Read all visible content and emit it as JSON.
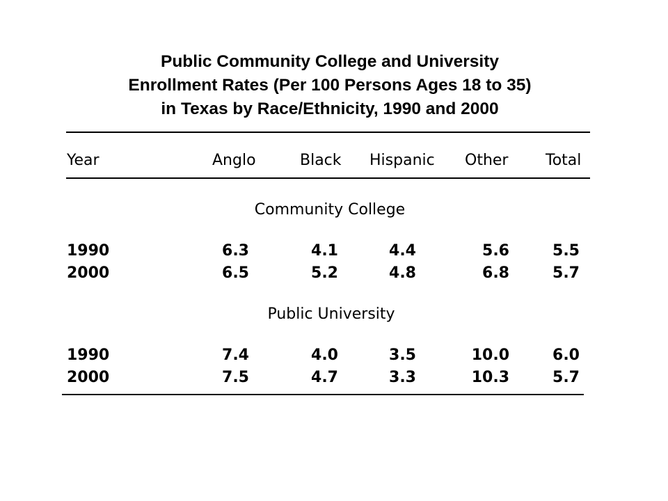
{
  "title": {
    "line1": "Public Community College and University",
    "line2": "Enrollment Rates (Per 100 Persons Ages 18 to 35)",
    "line3": "in Texas by Race/Ethnicity, 1990 and 2000"
  },
  "table": {
    "headers": {
      "year": "Year",
      "anglo": "Anglo",
      "black": "Black",
      "hispanic": "Hispanic",
      "other": "Other",
      "total": "Total"
    },
    "sections": [
      {
        "label": "Community College",
        "rows": [
          {
            "year": "1990",
            "anglo": "6.3",
            "black": "4.1",
            "hispanic": "4.4",
            "other": "5.6",
            "total": "5.5"
          },
          {
            "year": "2000",
            "anglo": "6.5",
            "black": "5.2",
            "hispanic": "4.8",
            "other": "6.8",
            "total": "5.7"
          }
        ]
      },
      {
        "label": "Public University",
        "rows": [
          {
            "year": "1990",
            "anglo": "7.4",
            "black": "4.0",
            "hispanic": "3.5",
            "other": "10.0",
            "total": "6.0"
          },
          {
            "year": "2000",
            "anglo": "7.5",
            "black": "4.7",
            "hispanic": "3.3",
            "other": "10.3",
            "total": "5.7"
          }
        ]
      }
    ]
  }
}
